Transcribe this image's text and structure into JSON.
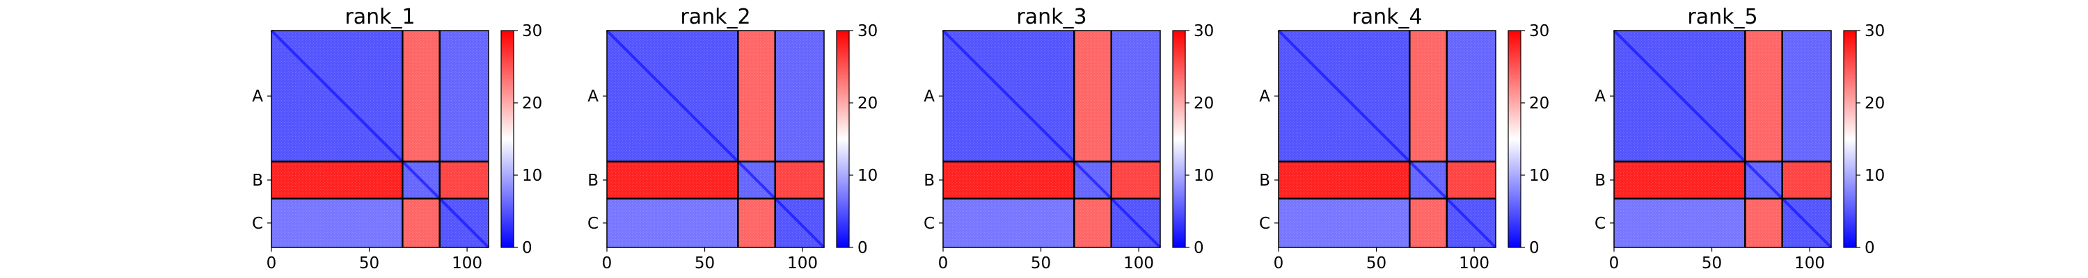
{
  "chart_data": {
    "type": "heatmap",
    "colormap": [
      "#0000ff",
      "#ffffff",
      "#ff0000"
    ],
    "color_range": [
      0,
      30
    ],
    "colorbar_ticks": [
      "0",
      "10",
      "20",
      "30"
    ],
    "x_ticks": [
      "0",
      "50",
      "100"
    ],
    "xlim": [
      0,
      111
    ],
    "chains": [
      {
        "label": "A",
        "start": 0,
        "end": 67
      },
      {
        "label": "B",
        "start": 67,
        "end": 86
      },
      {
        "label": "C",
        "start": 86,
        "end": 111
      }
    ],
    "block_mean_values": [
      [
        5,
        24,
        6
      ],
      [
        28,
        6,
        26
      ],
      [
        7,
        24,
        5
      ]
    ],
    "panels": [
      {
        "title": "rank_1"
      },
      {
        "title": "rank_2"
      },
      {
        "title": "rank_3"
      },
      {
        "title": "rank_4"
      },
      {
        "title": "rank_5"
      }
    ]
  }
}
